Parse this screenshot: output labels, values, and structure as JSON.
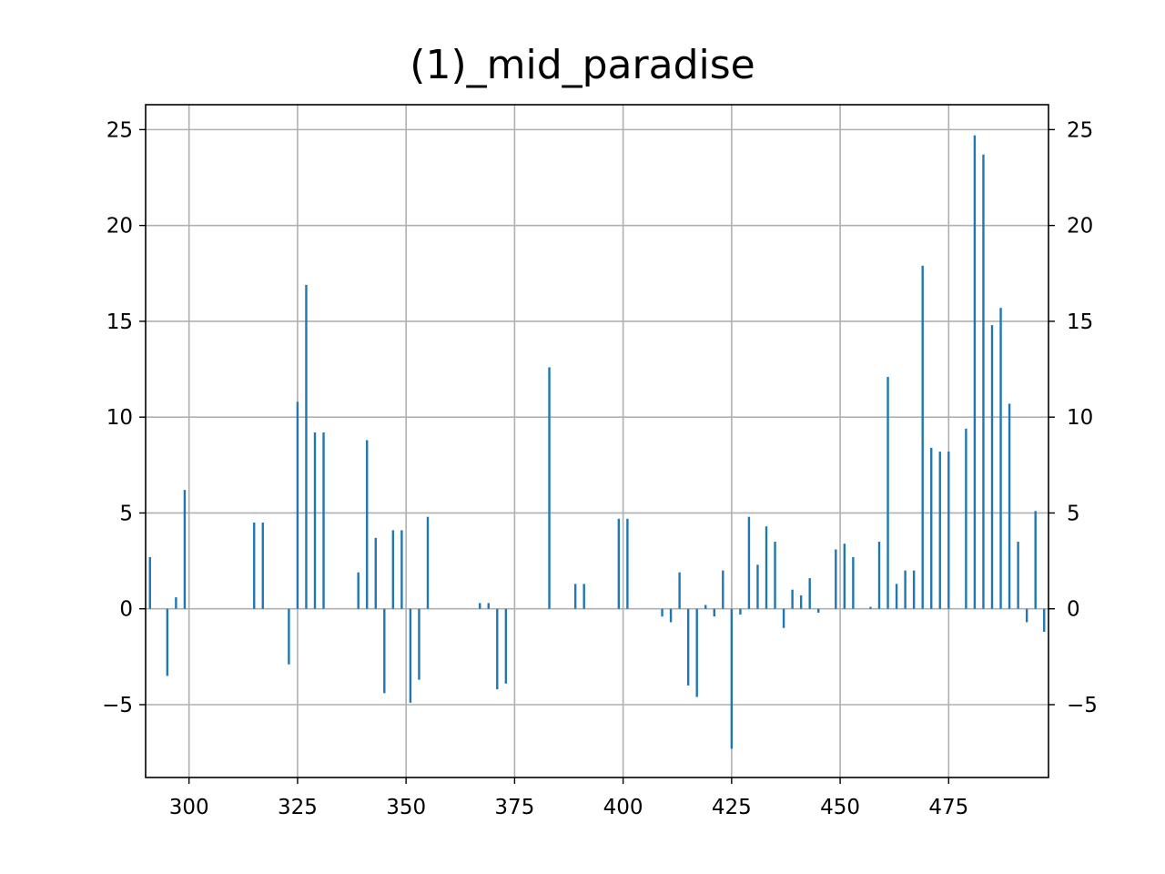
{
  "chart_data": {
    "type": "bar",
    "title": "(1)_mid_paradise",
    "xlabel": "",
    "ylabel": "",
    "xlim": [
      290,
      498
    ],
    "ylim": [
      -8.8,
      26.3
    ],
    "grid": true,
    "right_axis": true,
    "bar_color": "#1f77b4",
    "xticks": [
      300,
      325,
      350,
      375,
      400,
      425,
      450,
      475
    ],
    "xtick_labels": [
      "300",
      "325",
      "350",
      "375",
      "400",
      "425",
      "450",
      "475"
    ],
    "yticks": [
      -5,
      0,
      5,
      10,
      15,
      20,
      25
    ],
    "ytick_labels": [
      "−5",
      "0",
      "5",
      "10",
      "15",
      "20",
      "25"
    ],
    "x": [
      291,
      295,
      297,
      299,
      315,
      317,
      323,
      325,
      327,
      329,
      331,
      339,
      341,
      343,
      345,
      347,
      349,
      351,
      353,
      355,
      367,
      369,
      371,
      373,
      383,
      389,
      391,
      399,
      401,
      409,
      411,
      413,
      415,
      417,
      419,
      421,
      423,
      425,
      427,
      429,
      431,
      433,
      435,
      437,
      439,
      441,
      443,
      445,
      449,
      451,
      453,
      457,
      459,
      461,
      463,
      465,
      467,
      469,
      471,
      473,
      475,
      479,
      481,
      483,
      485,
      487,
      489,
      491,
      493,
      495,
      497
    ],
    "values": [
      2.7,
      -3.5,
      0.6,
      6.2,
      4.5,
      4.5,
      -2.9,
      10.8,
      16.9,
      9.2,
      9.2,
      1.9,
      8.8,
      3.7,
      -4.4,
      4.1,
      4.1,
      -4.9,
      -3.7,
      4.8,
      0.3,
      0.3,
      -4.2,
      -3.9,
      12.6,
      1.3,
      1.3,
      4.7,
      4.7,
      -0.4,
      -0.7,
      1.9,
      -4.0,
      -4.6,
      0.2,
      -0.4,
      2.0,
      -7.3,
      -0.3,
      4.8,
      2.3,
      4.3,
      3.5,
      -1.0,
      1.0,
      0.7,
      1.6,
      -0.2,
      3.1,
      3.4,
      2.7,
      0.1,
      3.5,
      12.1,
      1.3,
      2.0,
      2.0,
      17.9,
      8.4,
      8.2,
      8.2,
      9.4,
      24.7,
      23.7,
      14.8,
      15.7,
      10.7,
      3.5,
      -0.7,
      5.1,
      -1.2
    ]
  }
}
